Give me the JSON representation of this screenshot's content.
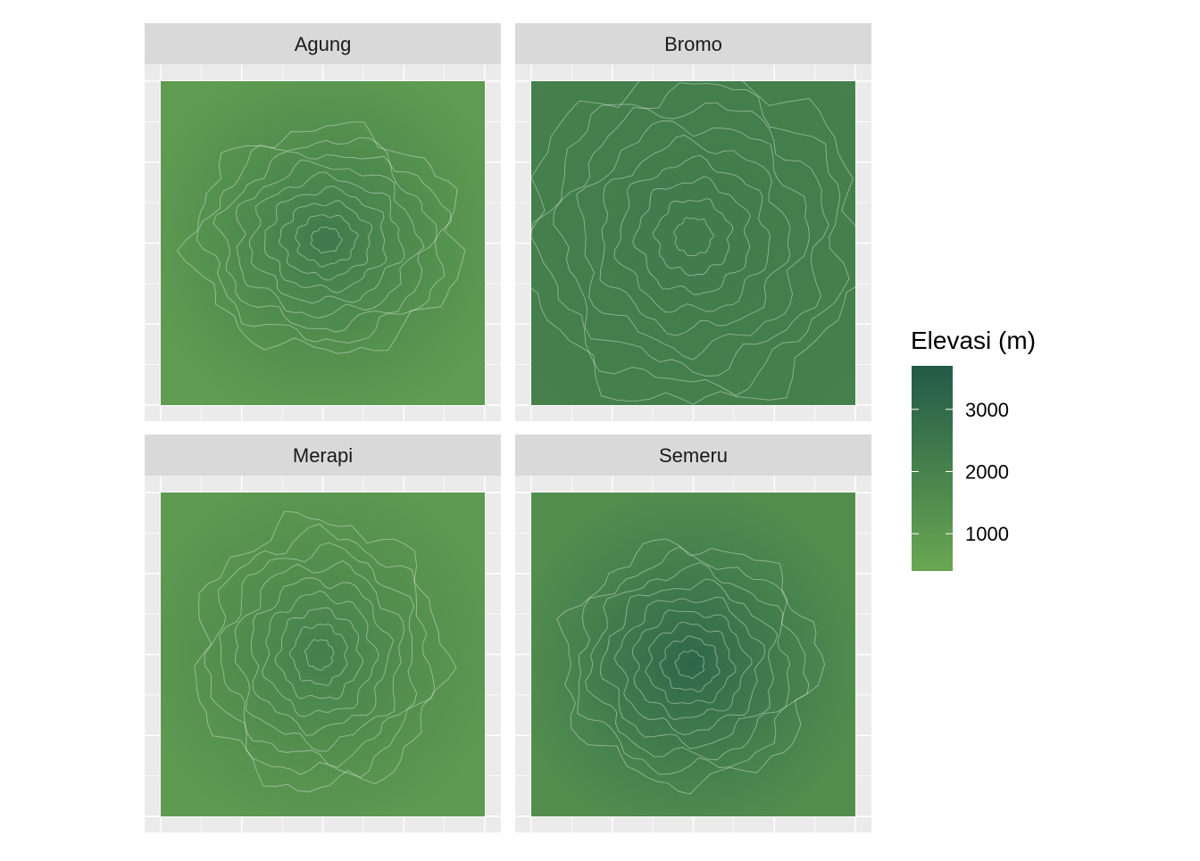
{
  "chart_data": {
    "type": "heatmap",
    "title": "",
    "xlabel": "",
    "ylabel": "",
    "facets": [
      {
        "label": "Agung",
        "center": [
          0.51,
          0.49
        ],
        "spread": [
          0.36,
          0.3
        ],
        "base": 900,
        "peak": 2400
      },
      {
        "label": "Bromo",
        "center": [
          0.5,
          0.48
        ],
        "spread": [
          0.45,
          0.45
        ],
        "base": 2050,
        "peak": 2300
      },
      {
        "label": "Merapi",
        "center": [
          0.49,
          0.5
        ],
        "spread": [
          0.33,
          0.36
        ],
        "base": 950,
        "peak": 2150
      },
      {
        "label": "Semeru",
        "center": [
          0.49,
          0.53
        ],
        "spread": [
          0.34,
          0.32
        ],
        "base": 1500,
        "peak": 3200
      }
    ],
    "legend": {
      "title": "Elevasi (m)",
      "position": "right",
      "range": [
        400,
        3700
      ],
      "ticks": [
        1000,
        2000,
        3000
      ],
      "tick_labels": [
        "1000",
        "2000",
        "3000"
      ],
      "color_low": "#6aa752",
      "color_high": "#225a47"
    },
    "grid": true,
    "contours": true,
    "panel_background": "#ebebeb",
    "strip_background": "#d9d9d9"
  }
}
